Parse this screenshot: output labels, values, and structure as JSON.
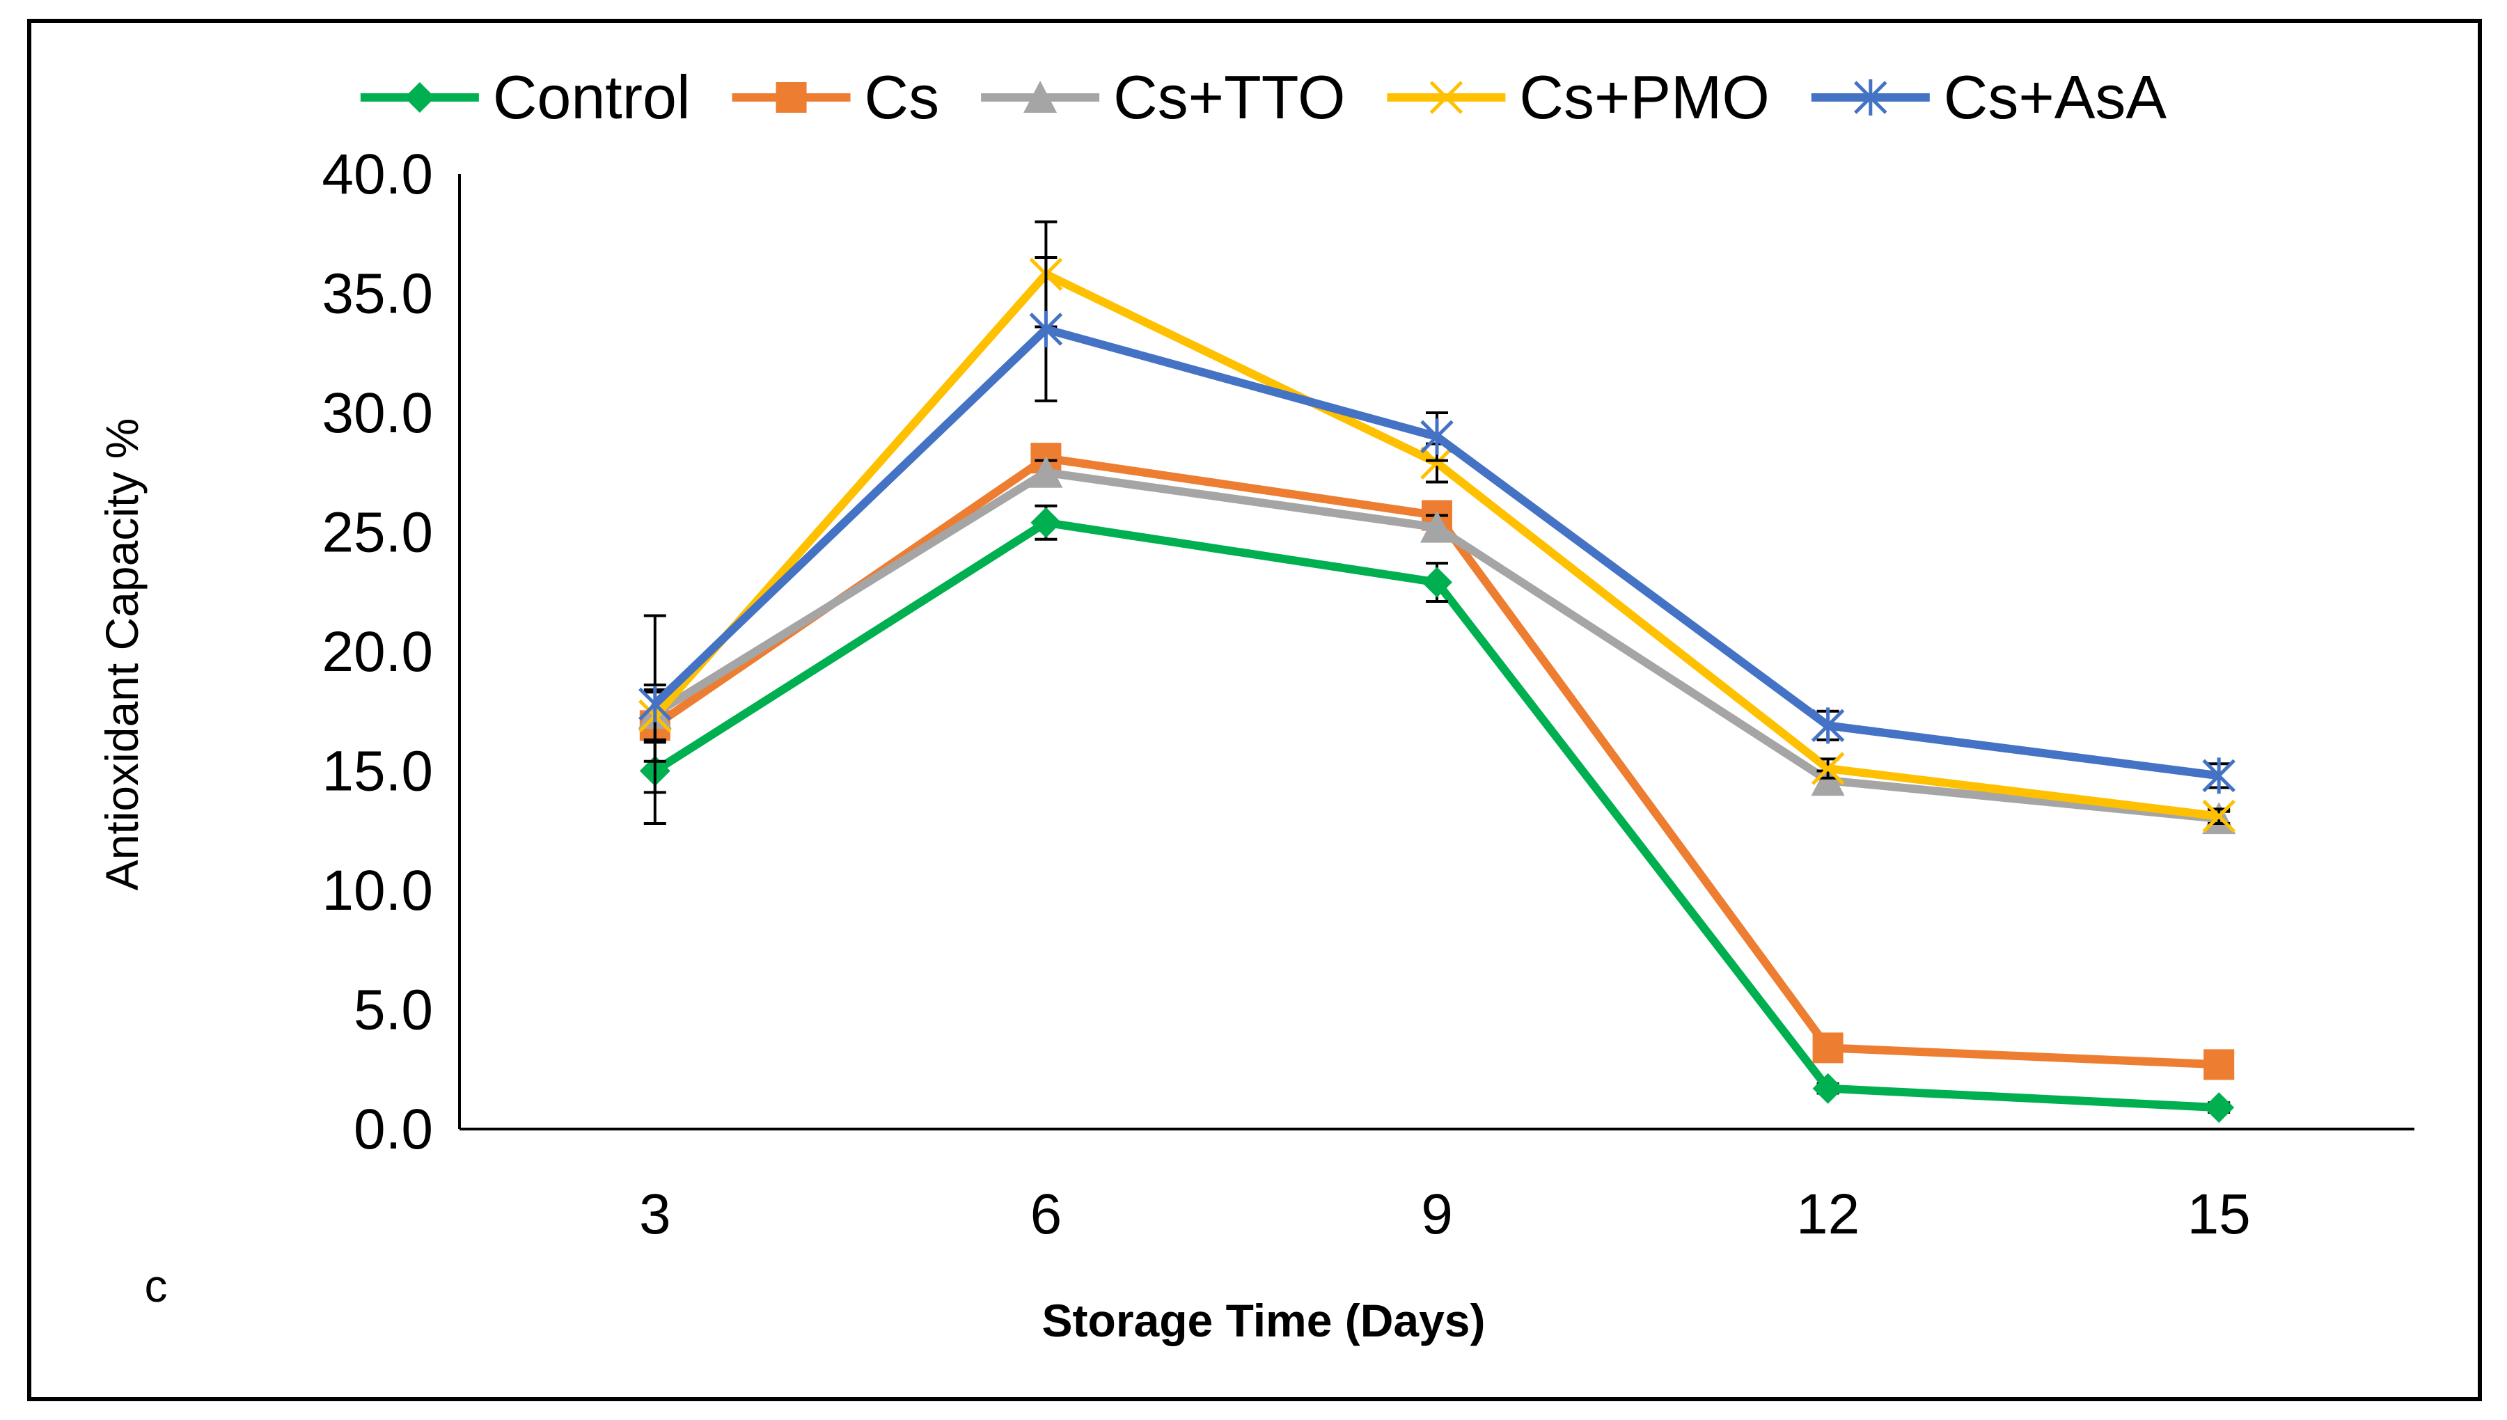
{
  "chart_data": {
    "type": "line",
    "panel_label": "c",
    "xlabel": "Storage Time (Days)",
    "ylabel": "Antioxidant Capacity %",
    "categories": [
      "3",
      "6",
      "9",
      "12",
      "15"
    ],
    "ylim": [
      0,
      40
    ],
    "yticks": [
      "0.0",
      "5.0",
      "10.0",
      "15.0",
      "20.0",
      "25.0",
      "30.0",
      "35.0",
      "40.0"
    ],
    "legend_position": "top",
    "series": [
      {
        "name": "Control",
        "color": "#00B050",
        "marker": "diamond",
        "values": [
          15.0,
          25.4,
          22.9,
          1.7,
          0.9
        ],
        "errors": [
          2.2,
          0.7,
          0.8,
          0.2,
          0.2
        ]
      },
      {
        "name": "Cs",
        "color": "#ED7D31",
        "marker": "square",
        "values": [
          16.9,
          28.1,
          25.7,
          3.4,
          2.7
        ],
        "errors": [
          1.5,
          0.5,
          0.5,
          0.2,
          0.2
        ]
      },
      {
        "name": "Cs+TTO",
        "color": "#A5A5A5",
        "marker": "triangle",
        "values": [
          17.4,
          27.5,
          25.2,
          14.6,
          13.0
        ],
        "errors": [
          1.2,
          0.5,
          0.5,
          0.4,
          0.3
        ]
      },
      {
        "name": "Cs+PMO",
        "color": "#FFC000",
        "marker": "x",
        "values": [
          17.3,
          35.8,
          27.9,
          15.1,
          13.1
        ],
        "errors": [
          1.0,
          2.2,
          0.8,
          0.4,
          0.3
        ]
      },
      {
        "name": "Cs+AsA",
        "color": "#4472C4",
        "marker": "asterisk",
        "values": [
          17.8,
          33.5,
          29.0,
          16.9,
          14.8
        ],
        "errors": [
          3.7,
          3.0,
          1.0,
          0.6,
          0.5
        ]
      }
    ]
  }
}
